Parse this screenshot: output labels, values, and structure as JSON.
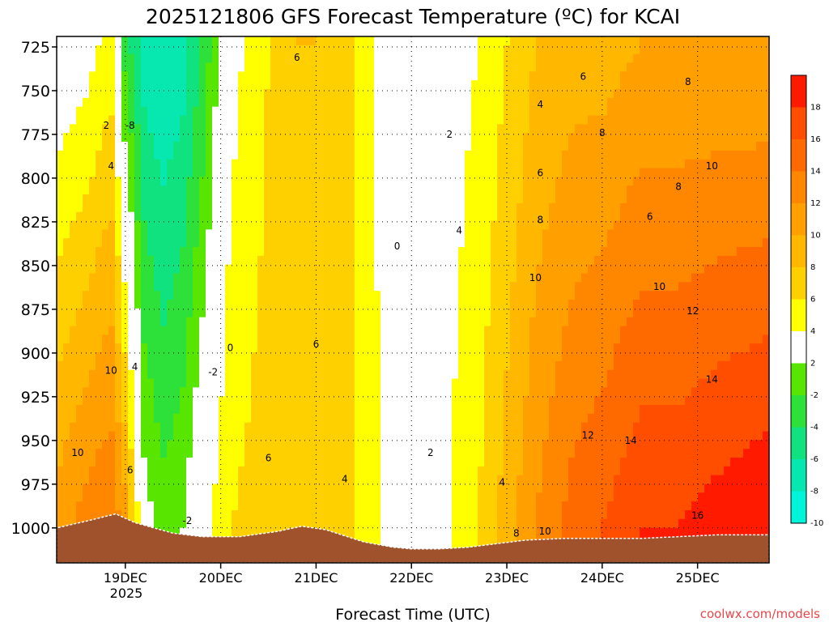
{
  "chart_data": {
    "type": "heatmap",
    "title": "2025121806 GFS Forecast Temperature (ºC) for KCAI",
    "xlabel": "Forecast Time (UTC)",
    "ylabel": "",
    "credit": "coolwx.com/models",
    "x_ticks": [
      "19DEC",
      "20DEC",
      "21DEC",
      "22DEC",
      "23DEC",
      "24DEC",
      "25DEC"
    ],
    "x_year": "2025",
    "x_range_days": [
      18.28,
      25.75
    ],
    "y_ticks": [
      725,
      750,
      775,
      800,
      825,
      850,
      875,
      900,
      925,
      950,
      975,
      1000
    ],
    "y_range_hpa": [
      719,
      1020
    ],
    "colorbar": {
      "bins": [
        {
          "range": [
            16,
            20
          ],
          "color": "#ff1a00"
        },
        {
          "range": [
            14,
            16
          ],
          "color": "#ff4e00"
        },
        {
          "range": [
            12,
            14
          ],
          "color": "#ff6a00"
        },
        {
          "range": [
            10,
            12
          ],
          "color": "#ff8700"
        },
        {
          "range": [
            8,
            10
          ],
          "color": "#ffa000"
        },
        {
          "range": [
            6,
            8
          ],
          "color": "#ffb700"
        },
        {
          "range": [
            4,
            6
          ],
          "color": "#ffd000"
        },
        {
          "range": [
            2,
            4
          ],
          "color": "#ffff00"
        },
        {
          "range": [
            -2,
            2
          ],
          "color": "#ffffff"
        },
        {
          "range": [
            -4,
            -2
          ],
          "color": "#58e600"
        },
        {
          "range": [
            -6,
            -4
          ],
          "color": "#2ee03a"
        },
        {
          "range": [
            -8,
            -6
          ],
          "color": "#10e27f"
        },
        {
          "range": [
            -10,
            -8
          ],
          "color": "#06e8b0"
        },
        {
          "range": [
            -12,
            -10
          ],
          "color": "#00f5d8"
        }
      ],
      "tick_labels": [
        "18",
        "16",
        "14",
        "12",
        "10",
        "8",
        "6",
        "4",
        "2",
        "-2",
        "-4",
        "-6",
        "-8",
        "-10"
      ]
    },
    "temperature_profile": {
      "x_days": [
        18.28,
        18.6,
        18.85,
        19.0,
        19.2,
        19.4,
        19.6,
        19.8,
        20.1,
        20.5,
        20.8,
        21.0,
        21.4,
        21.7,
        21.9,
        22.1,
        22.4,
        22.7,
        23.0,
        23.3,
        23.7,
        24.0,
        24.4,
        24.8,
        25.2,
        25.75
      ],
      "t_at_725hpa": [
        0,
        1,
        3,
        -5,
        -9,
        -10,
        -9,
        -6,
        1,
        4,
        6,
        6,
        4,
        1,
        0,
        0,
        1,
        2,
        4,
        6,
        7,
        7,
        8,
        8,
        8,
        8
      ],
      "t_at_1000hpa": [
        9,
        11,
        12,
        9,
        -1,
        -3,
        -2,
        1,
        4,
        5,
        5,
        6,
        4,
        2,
        1,
        1,
        2,
        4,
        7,
        10,
        13,
        14,
        16,
        16,
        17,
        18
      ],
      "t_min_value": -10,
      "t_max_value": 18
    },
    "contour_labels": [
      {
        "text": "6",
        "x_day": 20.8,
        "p_hpa": 731
      },
      {
        "text": "2",
        "x_day": 18.8,
        "p_hpa": 770
      },
      {
        "text": "-8",
        "x_day": 19.05,
        "p_hpa": 770
      },
      {
        "text": "4",
        "x_day": 18.85,
        "p_hpa": 793
      },
      {
        "text": "6",
        "x_day": 23.8,
        "p_hpa": 742
      },
      {
        "text": "4",
        "x_day": 23.35,
        "p_hpa": 758
      },
      {
        "text": "8",
        "x_day": 24.9,
        "p_hpa": 745
      },
      {
        "text": "2",
        "x_day": 22.4,
        "p_hpa": 775
      },
      {
        "text": "8",
        "x_day": 24.0,
        "p_hpa": 774
      },
      {
        "text": "6",
        "x_day": 23.35,
        "p_hpa": 797
      },
      {
        "text": "10",
        "x_day": 25.15,
        "p_hpa": 793
      },
      {
        "text": "6",
        "x_day": 24.5,
        "p_hpa": 822
      },
      {
        "text": "8",
        "x_day": 24.8,
        "p_hpa": 805
      },
      {
        "text": "4",
        "x_day": 22.5,
        "p_hpa": 830
      },
      {
        "text": "8",
        "x_day": 23.35,
        "p_hpa": 824
      },
      {
        "text": "0",
        "x_day": 21.85,
        "p_hpa": 839
      },
      {
        "text": "10",
        "x_day": 23.3,
        "p_hpa": 857
      },
      {
        "text": "10",
        "x_day": 24.6,
        "p_hpa": 862
      },
      {
        "text": "12",
        "x_day": 24.95,
        "p_hpa": 876
      },
      {
        "text": "0",
        "x_day": 20.1,
        "p_hpa": 897
      },
      {
        "text": "6",
        "x_day": 21.0,
        "p_hpa": 895
      },
      {
        "text": "-2",
        "x_day": 19.92,
        "p_hpa": 911
      },
      {
        "text": "4",
        "x_day": 19.1,
        "p_hpa": 908
      },
      {
        "text": "10",
        "x_day": 18.85,
        "p_hpa": 910
      },
      {
        "text": "14",
        "x_day": 25.15,
        "p_hpa": 915
      },
      {
        "text": "12",
        "x_day": 23.85,
        "p_hpa": 947
      },
      {
        "text": "14",
        "x_day": 24.3,
        "p_hpa": 950
      },
      {
        "text": "10",
        "x_day": 18.5,
        "p_hpa": 957
      },
      {
        "text": "2",
        "x_day": 22.2,
        "p_hpa": 957
      },
      {
        "text": "6",
        "x_day": 20.5,
        "p_hpa": 960
      },
      {
        "text": "6",
        "x_day": 19.05,
        "p_hpa": 967
      },
      {
        "text": "4",
        "x_day": 21.3,
        "p_hpa": 972
      },
      {
        "text": "4",
        "x_day": 22.95,
        "p_hpa": 974
      },
      {
        "text": "-2",
        "x_day": 19.65,
        "p_hpa": 996
      },
      {
        "text": "16",
        "x_day": 25.0,
        "p_hpa": 993
      },
      {
        "text": "8",
        "x_day": 23.1,
        "p_hpa": 1003
      },
      {
        "text": "10",
        "x_day": 23.4,
        "p_hpa": 1002
      }
    ],
    "surface_pressure_hpa": {
      "x_days": [
        18.28,
        18.6,
        18.9,
        19.1,
        19.5,
        19.8,
        20.2,
        20.6,
        20.85,
        21.1,
        21.5,
        21.8,
        22.0,
        22.3,
        22.6,
        22.9,
        23.2,
        23.6,
        24.0,
        24.4,
        24.8,
        25.2,
        25.75
      ],
      "p_hpa": [
        1000,
        996,
        992,
        997,
        1003,
        1005,
        1005,
        1002,
        999,
        1001,
        1008,
        1011,
        1012,
        1012,
        1011,
        1009,
        1007,
        1006,
        1006,
        1006,
        1005,
        1004,
        1004
      ]
    },
    "grid": true,
    "legend": "right colorbar"
  }
}
